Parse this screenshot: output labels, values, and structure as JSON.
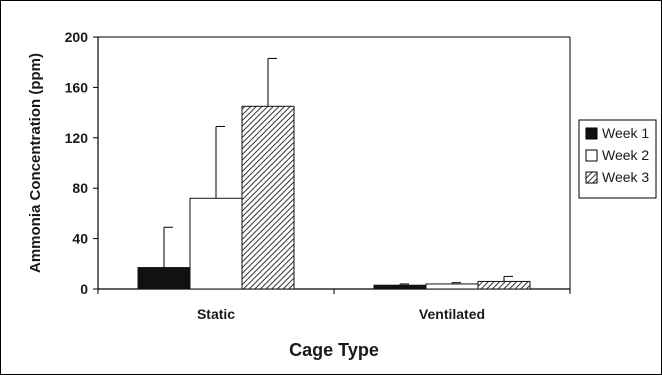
{
  "chart_data": {
    "type": "bar",
    "title": "",
    "xlabel": "Cage Type",
    "ylabel": "Ammonia Concentration (ppm)",
    "ylim": [
      0,
      200
    ],
    "yticks": [
      "0",
      "40",
      "80",
      "120",
      "160",
      "200"
    ],
    "categories": [
      "Static",
      "Ventilated"
    ],
    "series": [
      {
        "name": "Week 1",
        "values": [
          17,
          3
        ],
        "errors": [
          32,
          1
        ],
        "fill": "solid-black"
      },
      {
        "name": "Week 2",
        "values": [
          72,
          4
        ],
        "errors": [
          57,
          1
        ],
        "fill": "white"
      },
      {
        "name": "Week 3",
        "values": [
          145,
          6
        ],
        "errors": [
          38,
          4
        ],
        "fill": "diagonal-hatch"
      }
    ],
    "grid": false,
    "legend_position": "right"
  },
  "colors": {
    "bar_outline": "#111111",
    "week1": "#111111",
    "week2": "#ffffff",
    "hatch": "#333333"
  }
}
